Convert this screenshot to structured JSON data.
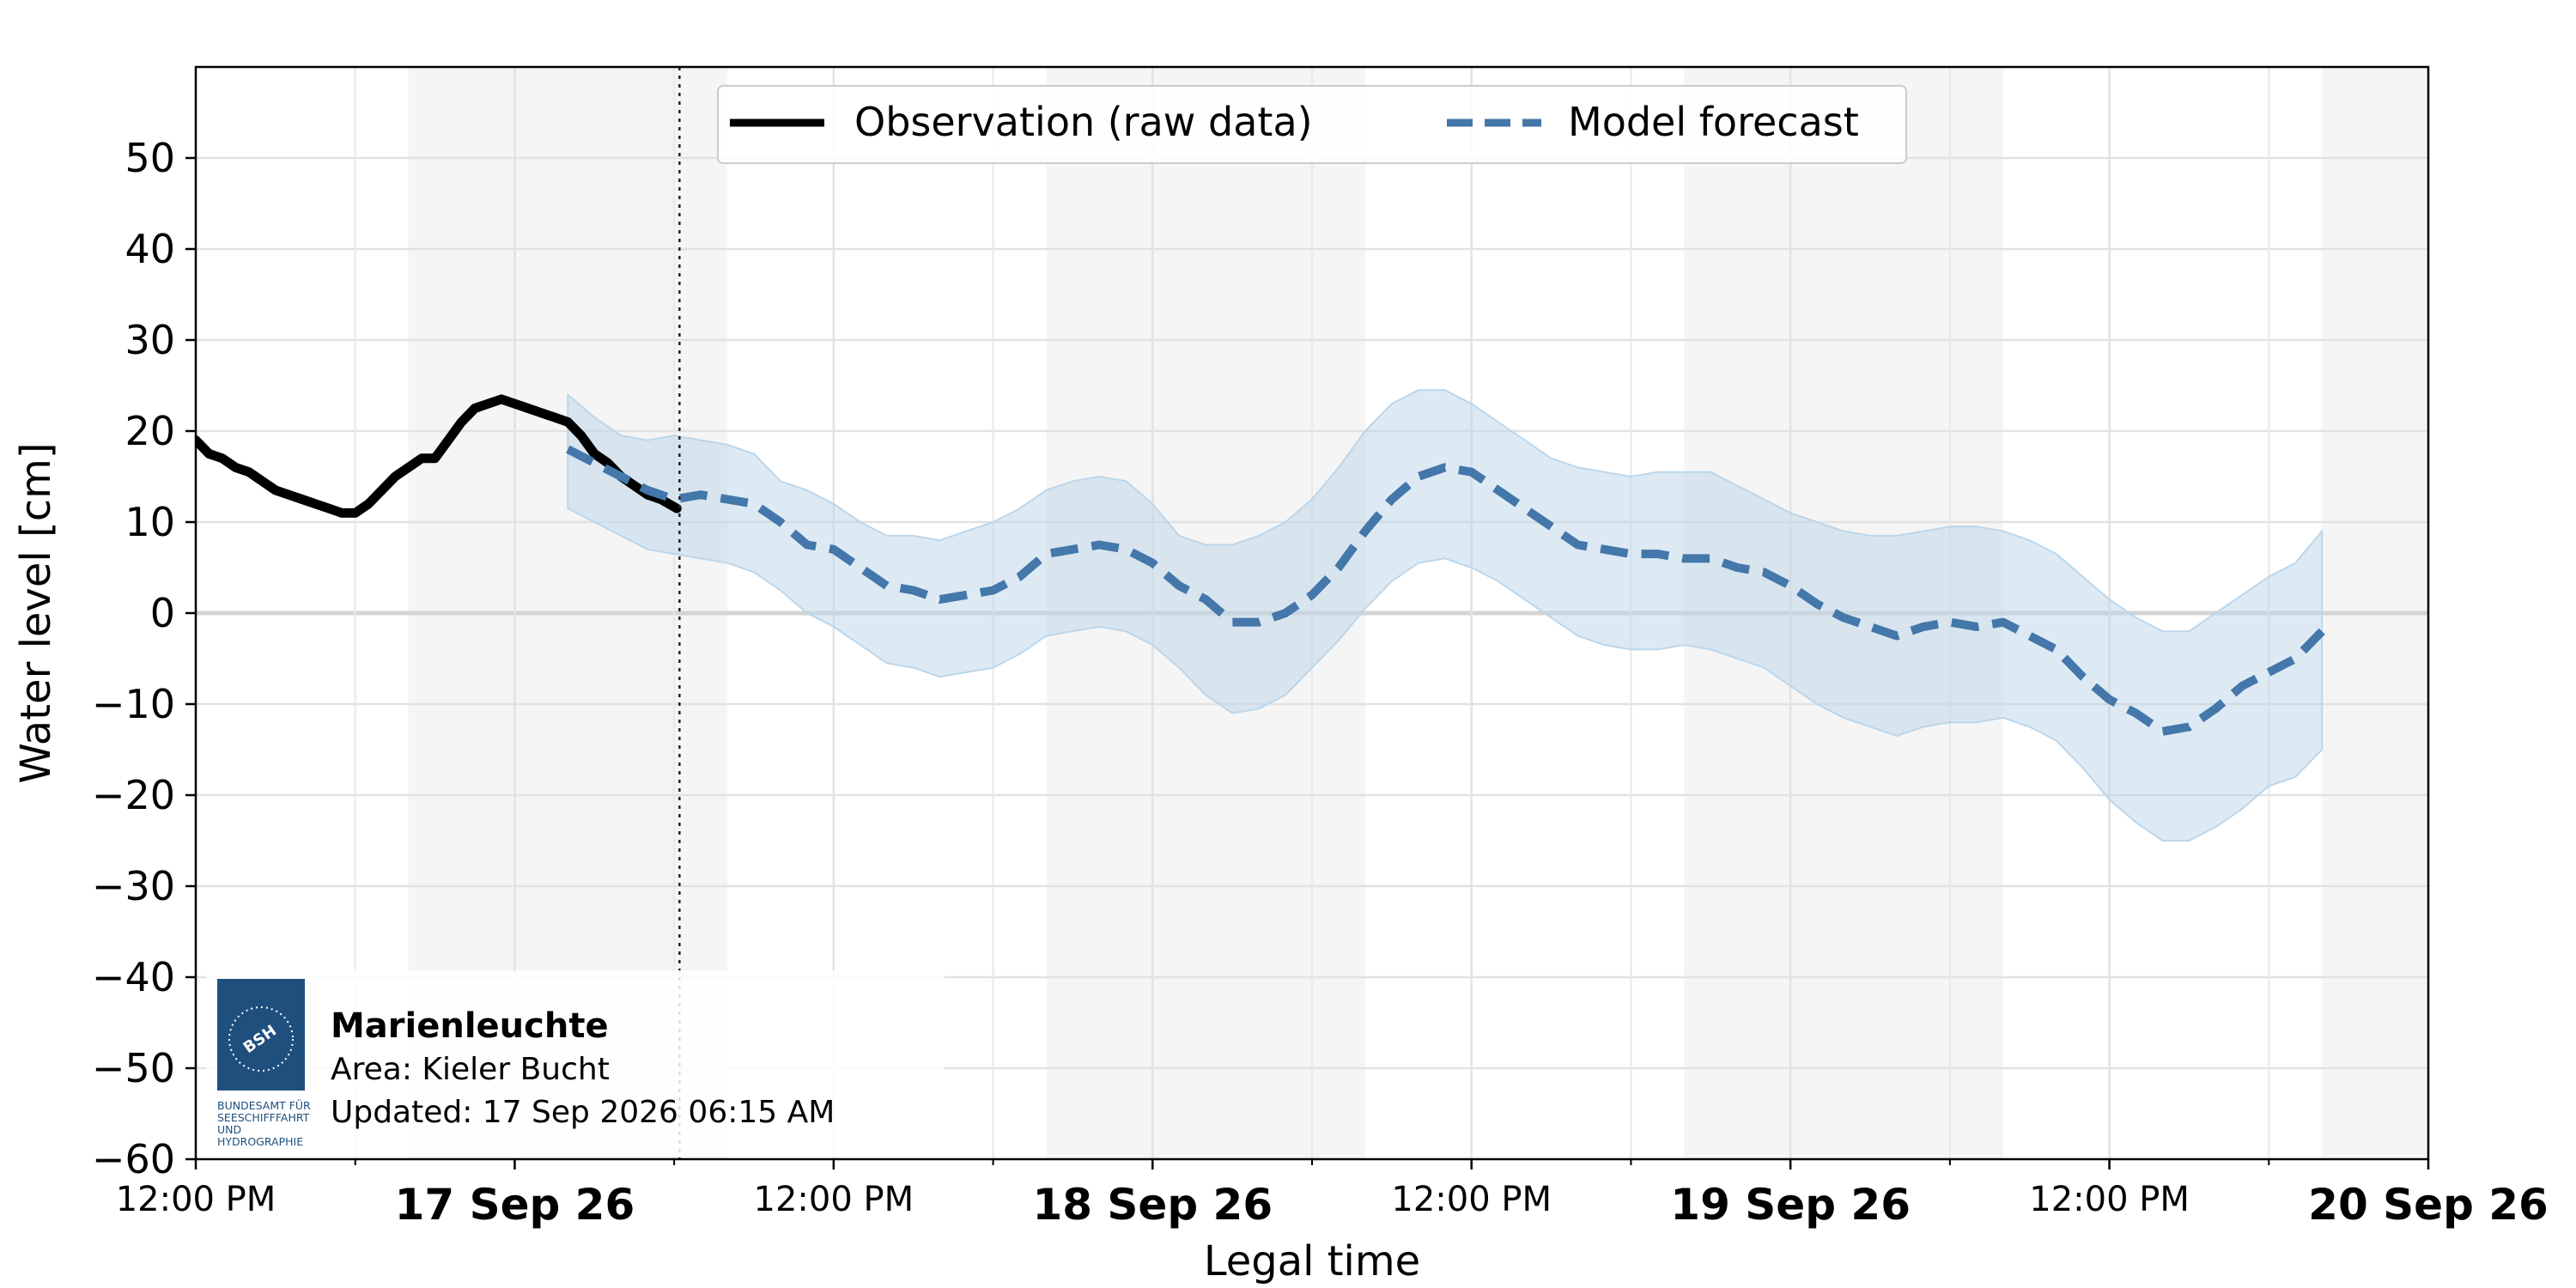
{
  "chart_data": {
    "type": "line",
    "xlabel": "Legal time",
    "ylabel": "Water level [cm]",
    "ylim": [
      -60,
      60
    ],
    "yticks": [
      50,
      40,
      30,
      20,
      10,
      0,
      -10,
      -20,
      -30,
      -40,
      -50,
      -60
    ],
    "ytick_labels": [
      "50",
      "40",
      "30",
      "20",
      "10",
      "0",
      "−10",
      "−20",
      "−30",
      "−40",
      "−50",
      "−60"
    ],
    "xlim_hours_label": "16 Sep 26 12:00 PM to 20 Sep 26 12:00 AM",
    "x_ticks": [
      {
        "hour": 0,
        "label": "12:00 PM",
        "bold": false
      },
      {
        "hour": 12,
        "label": "17 Sep 26",
        "bold": true
      },
      {
        "hour": 24,
        "label": "12:00 PM",
        "bold": false
      },
      {
        "hour": 36,
        "label": "18 Sep 26",
        "bold": true
      },
      {
        "hour": 48,
        "label": "12:00 PM",
        "bold": false
      },
      {
        "hour": 60,
        "label": "19 Sep 26",
        "bold": true
      },
      {
        "hour": 72,
        "label": "12:00 PM",
        "bold": false
      },
      {
        "hour": 84,
        "label": "20 Sep 26",
        "bold": true
      }
    ],
    "x_minor_hours": [
      6,
      18,
      30,
      42,
      54,
      66,
      78
    ],
    "night_shading_hours": [
      [
        8,
        20
      ],
      [
        32,
        44
      ],
      [
        56,
        68
      ],
      [
        80,
        84
      ]
    ],
    "now_hour": 18.2,
    "legend": {
      "position": "top-center",
      "entries": [
        "Observation (raw data)",
        "Model forecast"
      ]
    },
    "grid": true,
    "colors": {
      "observation": "#000000",
      "forecast": "#4477aa",
      "band": "#bcd6ea",
      "night": "#f5f5f5"
    },
    "series": [
      {
        "name": "Observation (raw data)",
        "style": "solid",
        "points": [
          [
            0,
            19
          ],
          [
            0.5,
            17.5
          ],
          [
            1,
            17
          ],
          [
            1.5,
            16
          ],
          [
            2,
            15.5
          ],
          [
            2.5,
            14.5
          ],
          [
            3,
            13.5
          ],
          [
            3.5,
            13
          ],
          [
            4,
            12.5
          ],
          [
            4.5,
            12
          ],
          [
            5,
            11.5
          ],
          [
            5.5,
            11
          ],
          [
            6,
            11
          ],
          [
            6.5,
            12
          ],
          [
            7,
            13.5
          ],
          [
            7.5,
            15
          ],
          [
            8,
            16
          ],
          [
            8.5,
            17
          ],
          [
            9,
            17
          ],
          [
            9.5,
            19
          ],
          [
            10,
            21
          ],
          [
            10.5,
            22.5
          ],
          [
            11,
            23
          ],
          [
            11.5,
            23.5
          ],
          [
            12,
            23
          ],
          [
            12.5,
            22.5
          ],
          [
            13,
            22
          ],
          [
            13.5,
            21.5
          ],
          [
            14,
            21
          ],
          [
            14.5,
            19.5
          ],
          [
            15,
            17.5
          ],
          [
            15.5,
            16.5
          ],
          [
            16,
            15
          ],
          [
            16.5,
            14
          ],
          [
            17,
            13
          ],
          [
            17.5,
            12.5
          ],
          [
            18.1,
            11.5
          ]
        ]
      },
      {
        "name": "Model forecast",
        "style": "dashed",
        "points": [
          [
            14,
            18
          ],
          [
            15,
            16.5
          ],
          [
            16,
            15
          ],
          [
            17,
            13.5
          ],
          [
            18,
            12.5
          ],
          [
            19,
            13
          ],
          [
            20,
            12.5
          ],
          [
            21,
            12
          ],
          [
            22,
            10
          ],
          [
            23,
            7.5
          ],
          [
            24,
            7
          ],
          [
            25,
            5
          ],
          [
            26,
            3
          ],
          [
            27,
            2.5
          ],
          [
            28,
            1.5
          ],
          [
            29,
            2
          ],
          [
            30,
            2.5
          ],
          [
            31,
            4
          ],
          [
            32,
            6.5
          ],
          [
            33,
            7
          ],
          [
            34,
            7.5
          ],
          [
            35,
            7
          ],
          [
            36,
            5.5
          ],
          [
            37,
            3
          ],
          [
            38,
            1.5
          ],
          [
            39,
            -1
          ],
          [
            40,
            -1
          ],
          [
            41,
            0
          ],
          [
            42,
            2
          ],
          [
            43,
            5
          ],
          [
            44,
            9
          ],
          [
            45,
            12.5
          ],
          [
            46,
            15
          ],
          [
            47,
            16
          ],
          [
            48,
            15.5
          ],
          [
            49,
            13.5
          ],
          [
            50,
            11.5
          ],
          [
            51,
            9.5
          ],
          [
            52,
            7.5
          ],
          [
            53,
            7
          ],
          [
            54,
            6.5
          ],
          [
            55,
            6.5
          ],
          [
            56,
            6
          ],
          [
            57,
            6
          ],
          [
            58,
            5
          ],
          [
            59,
            4.5
          ],
          [
            60,
            3
          ],
          [
            61,
            1
          ],
          [
            62,
            -0.5
          ],
          [
            63,
            -1.5
          ],
          [
            64,
            -2.5
          ],
          [
            65,
            -1.5
          ],
          [
            66,
            -1
          ],
          [
            67,
            -1.5
          ],
          [
            68,
            -1
          ],
          [
            69,
            -2.5
          ],
          [
            70,
            -4
          ],
          [
            71,
            -7
          ],
          [
            72,
            -9.5
          ],
          [
            73,
            -11
          ],
          [
            74,
            -13
          ],
          [
            75,
            -12.5
          ],
          [
            76,
            -10.5
          ],
          [
            77,
            -8
          ],
          [
            78,
            -6.5
          ],
          [
            79,
            -5
          ],
          [
            80,
            -2
          ]
        ],
        "band_upper": [
          [
            14,
            24
          ],
          [
            15,
            21.5
          ],
          [
            16,
            19.5
          ],
          [
            17,
            19
          ],
          [
            18,
            19.5
          ],
          [
            19,
            19
          ],
          [
            20,
            18.5
          ],
          [
            21,
            17.5
          ],
          [
            22,
            14.5
          ],
          [
            23,
            13.5
          ],
          [
            24,
            12
          ],
          [
            25,
            10
          ],
          [
            26,
            8.5
          ],
          [
            27,
            8.5
          ],
          [
            28,
            8
          ],
          [
            29,
            9
          ],
          [
            30,
            10
          ],
          [
            31,
            11.5
          ],
          [
            32,
            13.5
          ],
          [
            33,
            14.5
          ],
          [
            34,
            15
          ],
          [
            35,
            14.5
          ],
          [
            36,
            12
          ],
          [
            37,
            8.5
          ],
          [
            38,
            7.5
          ],
          [
            39,
            7.5
          ],
          [
            40,
            8.5
          ],
          [
            41,
            10
          ],
          [
            42,
            12.5
          ],
          [
            43,
            16
          ],
          [
            44,
            20
          ],
          [
            45,
            23
          ],
          [
            46,
            24.5
          ],
          [
            47,
            24.5
          ],
          [
            48,
            23
          ],
          [
            49,
            21
          ],
          [
            50,
            19
          ],
          [
            51,
            17
          ],
          [
            52,
            16
          ],
          [
            53,
            15.5
          ],
          [
            54,
            15
          ],
          [
            55,
            15.5
          ],
          [
            56,
            15.5
          ],
          [
            57,
            15.5
          ],
          [
            58,
            14
          ],
          [
            59,
            12.5
          ],
          [
            60,
            11
          ],
          [
            61,
            10
          ],
          [
            62,
            9
          ],
          [
            63,
            8.5
          ],
          [
            64,
            8.5
          ],
          [
            65,
            9
          ],
          [
            66,
            9.5
          ],
          [
            67,
            9.5
          ],
          [
            68,
            9
          ],
          [
            69,
            8
          ],
          [
            70,
            6.5
          ],
          [
            71,
            4
          ],
          [
            72,
            1.5
          ],
          [
            73,
            -0.5
          ],
          [
            74,
            -2
          ],
          [
            75,
            -2
          ],
          [
            76,
            0
          ],
          [
            77,
            2
          ],
          [
            78,
            4
          ],
          [
            79,
            5.5
          ],
          [
            80,
            9
          ]
        ],
        "band_lower": [
          [
            14,
            11.5
          ],
          [
            15,
            10
          ],
          [
            16,
            8.5
          ],
          [
            17,
            7
          ],
          [
            18,
            6.5
          ],
          [
            19,
            6
          ],
          [
            20,
            5.5
          ],
          [
            21,
            4.5
          ],
          [
            22,
            2.5
          ],
          [
            23,
            0
          ],
          [
            24,
            -1.5
          ],
          [
            25,
            -3.5
          ],
          [
            26,
            -5.5
          ],
          [
            27,
            -6
          ],
          [
            28,
            -7
          ],
          [
            29,
            -6.5
          ],
          [
            30,
            -6
          ],
          [
            31,
            -4.5
          ],
          [
            32,
            -2.5
          ],
          [
            33,
            -2
          ],
          [
            34,
            -1.5
          ],
          [
            35,
            -2
          ],
          [
            36,
            -3.5
          ],
          [
            37,
            -6
          ],
          [
            38,
            -9
          ],
          [
            39,
            -11
          ],
          [
            40,
            -10.5
          ],
          [
            41,
            -9
          ],
          [
            42,
            -6
          ],
          [
            43,
            -3
          ],
          [
            44,
            0.5
          ],
          [
            45,
            3.5
          ],
          [
            46,
            5.5
          ],
          [
            47,
            6
          ],
          [
            48,
            5
          ],
          [
            49,
            3.5
          ],
          [
            50,
            1.5
          ],
          [
            51,
            -0.5
          ],
          [
            52,
            -2.5
          ],
          [
            53,
            -3.5
          ],
          [
            54,
            -4
          ],
          [
            55,
            -4
          ],
          [
            56,
            -3.5
          ],
          [
            57,
            -4
          ],
          [
            58,
            -5
          ],
          [
            59,
            -6
          ],
          [
            60,
            -8
          ],
          [
            61,
            -10
          ],
          [
            62,
            -11.5
          ],
          [
            63,
            -12.5
          ],
          [
            64,
            -13.5
          ],
          [
            65,
            -12.5
          ],
          [
            66,
            -12
          ],
          [
            67,
            -12
          ],
          [
            68,
            -11.5
          ],
          [
            69,
            -12.5
          ],
          [
            70,
            -14
          ],
          [
            71,
            -17
          ],
          [
            72,
            -20.5
          ],
          [
            73,
            -23
          ],
          [
            74,
            -25
          ],
          [
            75,
            -25
          ],
          [
            76,
            -23.5
          ],
          [
            77,
            -21.5
          ],
          [
            78,
            -19
          ],
          [
            79,
            -18
          ],
          [
            80,
            -15
          ]
        ]
      }
    ]
  },
  "info_box": {
    "station": "Marienleuchte",
    "area": "Area: Kieler Bucht",
    "updated": "Updated: 17 Sep 2026 06:15 AM",
    "logo_text": "BSH",
    "logo_caption": [
      "BUNDESAMT FÜR",
      "SEESCHIFFFAHRT",
      "UND",
      "HYDROGRAPHIE"
    ]
  }
}
